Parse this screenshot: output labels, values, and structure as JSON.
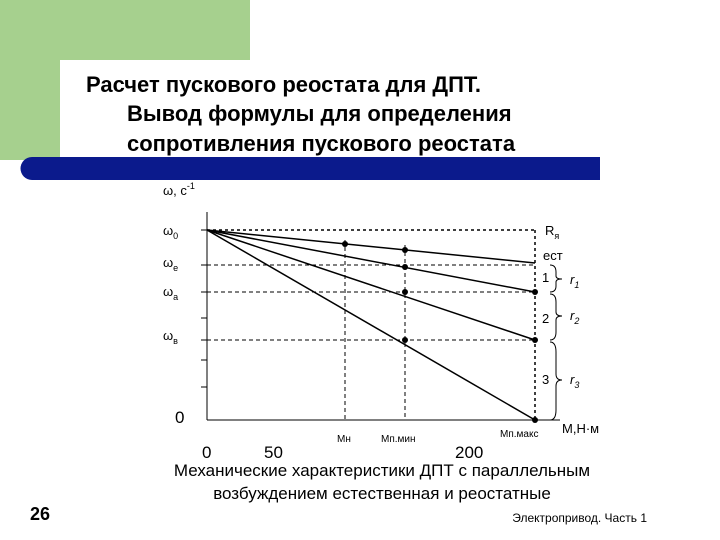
{
  "slide": {
    "title_lines": [
      "Расчет пускового реостата для ДПТ.",
      "Вывод формулы для определения",
      "сопротивления пускового реостата"
    ],
    "page_number": "26",
    "footer": "Электропривод. Часть 1",
    "caption_lines": [
      "Механические характеристики ДПТ с параллельным",
      "возбуждением естественная и реостатные"
    ]
  },
  "diagram": {
    "y_axis_label": {
      "text": "ω, с",
      "sup": "-1"
    },
    "y_labels": [
      {
        "symbol": "ω",
        "sub": "0"
      },
      {
        "symbol": "ω",
        "sub": "е"
      },
      {
        "symbol": "ω",
        "sub": "а"
      },
      {
        "symbol": "ω",
        "sub": "в"
      }
    ],
    "origin": "0",
    "x_ticks": [
      "0",
      "50",
      "200"
    ],
    "x_marks": [
      "Мн",
      "Мп.мин",
      "Мп.макс"
    ],
    "x_axis_label": "М,Н·м",
    "curve_labels": [
      {
        "symbol": "R",
        "sub": "я"
      },
      "ест",
      "1",
      "2",
      "3"
    ],
    "resistances": [
      {
        "symbol": "r",
        "sub": "1"
      },
      {
        "symbol": "r",
        "sub": "2"
      },
      {
        "symbol": "r",
        "sub": "3"
      }
    ]
  }
}
